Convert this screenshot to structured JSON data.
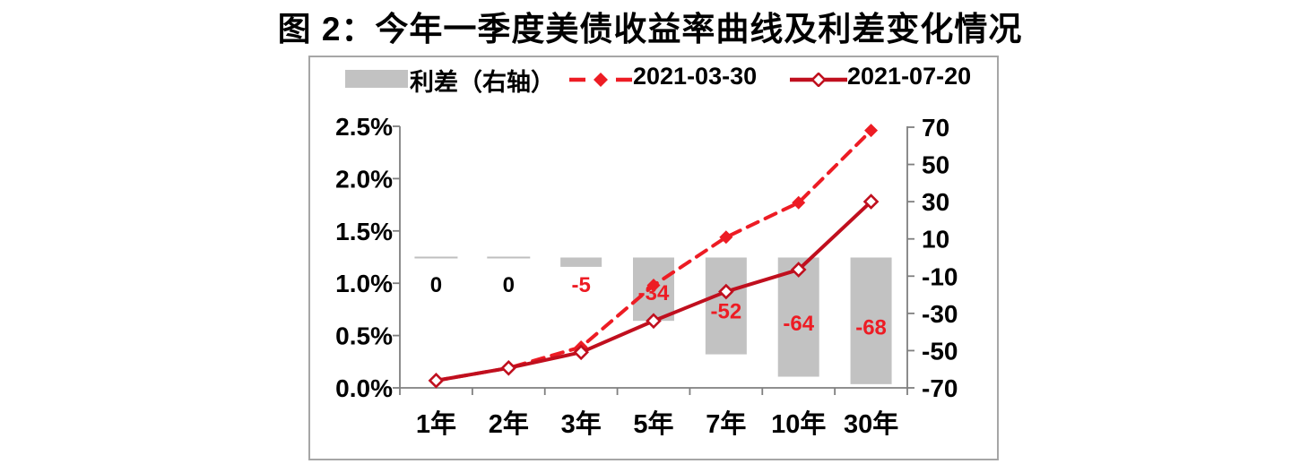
{
  "chart_data": {
    "type": "combo-bar-line",
    "title": "图 2：今年一季度美债收益率曲线及利差变化情况",
    "categories": [
      "1年",
      "2年",
      "3年",
      "5年",
      "7年",
      "10年",
      "30年"
    ],
    "series": [
      {
        "name": "利差（右轴）",
        "type": "bar",
        "axis": "right",
        "unit": "bp",
        "color": "#c2c2c2",
        "values": [
          0,
          0,
          -5,
          -34,
          -52,
          -64,
          -68
        ],
        "labels": [
          "0",
          "0",
          "-5",
          "-34",
          "-52",
          "-64",
          "-68"
        ],
        "label_colors": [
          "#000000",
          "#000000",
          "#ed1c24",
          "#ed1c24",
          "#ed1c24",
          "#ed1c24",
          "#ed1c24"
        ]
      },
      {
        "name": "2021-03-30",
        "type": "line",
        "line_style": "dashed",
        "marker": "filled-diamond",
        "axis": "left",
        "unit": "%",
        "color": "#ed1c24",
        "values": [
          0.07,
          0.19,
          0.39,
          0.98,
          1.44,
          1.77,
          2.46
        ]
      },
      {
        "name": "2021-07-20",
        "type": "line",
        "line_style": "solid",
        "marker": "open-diamond",
        "axis": "left",
        "unit": "%",
        "color": "#c00f1e",
        "values": [
          0.07,
          0.19,
          0.34,
          0.64,
          0.92,
          1.13,
          1.78
        ]
      }
    ],
    "left_axis": {
      "ticks": [
        "2.5%",
        "2.0%",
        "1.5%",
        "1.0%",
        "0.5%",
        "0.0%"
      ],
      "min": 0,
      "max": 2.5
    },
    "right_axis": {
      "ticks": [
        "70",
        "50",
        "30",
        "10",
        "-10",
        "-30",
        "-50",
        "-70"
      ],
      "min": -70,
      "max": 70
    },
    "legend_position": "top",
    "grid": "off",
    "axis_color": "#7f7f7f",
    "zero_bar_color": "#bfbfbf",
    "border_color": "#a6a6a6"
  }
}
